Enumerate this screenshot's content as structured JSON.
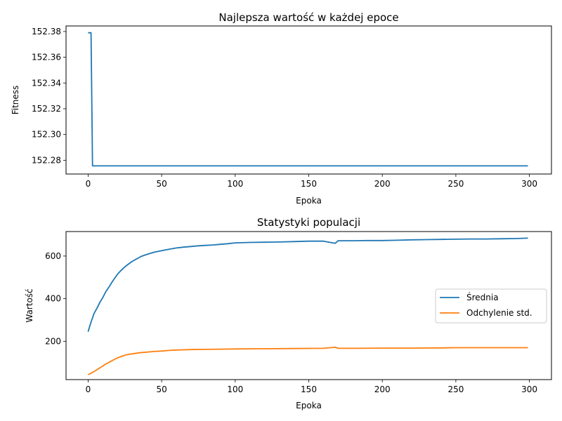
{
  "chart_data": [
    {
      "type": "line",
      "title": "Najlepsza wartość w każdej epoce",
      "xlabel": "Epoka",
      "ylabel": "Fitness",
      "xlim": [
        -15,
        315
      ],
      "ylim": [
        152.2693,
        152.3843
      ],
      "xticks": [
        0,
        50,
        100,
        150,
        200,
        250,
        300
      ],
      "xtick_labels": [
        "0",
        "50",
        "100",
        "150",
        "200",
        "250",
        "300"
      ],
      "yticks": [
        152.28,
        152.3,
        152.32,
        152.34,
        152.36,
        152.38
      ],
      "ytick_labels": [
        "152.28",
        "152.30",
        "152.32",
        "152.34",
        "152.36",
        "152.38"
      ],
      "legend": null,
      "grid": false,
      "series": [
        {
          "color": "#1f77b4",
          "x": [
            0,
            1,
            2,
            3,
            299
          ],
          "y": [
            152.379,
            152.379,
            152.379,
            152.2756,
            152.2756
          ]
        }
      ]
    },
    {
      "type": "line",
      "title": "Statystyki populacji",
      "xlabel": "Epoka",
      "ylabel": "Wartość",
      "xlim": [
        -15,
        315
      ],
      "ylim": [
        20,
        715
      ],
      "xticks": [
        0,
        50,
        100,
        150,
        200,
        250,
        300
      ],
      "xtick_labels": [
        "0",
        "50",
        "100",
        "150",
        "200",
        "250",
        "300"
      ],
      "yticks": [
        200,
        400,
        600
      ],
      "ytick_labels": [
        "200",
        "400",
        "600"
      ],
      "legend": "center-right",
      "grid": false,
      "series": [
        {
          "name": "Średnia",
          "color": "#1f77b4",
          "x": [
            0,
            2,
            4,
            6,
            8,
            10,
            12,
            14,
            16,
            18,
            20,
            22,
            24,
            26,
            28,
            30,
            32,
            34,
            36,
            38,
            40,
            45,
            50,
            55,
            60,
            65,
            70,
            75,
            80,
            85,
            90,
            95,
            100,
            110,
            120,
            130,
            140,
            150,
            160,
            168,
            170,
            180,
            190,
            200,
            210,
            220,
            230,
            240,
            250,
            260,
            270,
            280,
            290,
            299
          ],
          "y": [
            245,
            290,
            330,
            355,
            383,
            405,
            432,
            452,
            475,
            495,
            515,
            530,
            543,
            555,
            565,
            575,
            583,
            590,
            598,
            603,
            608,
            618,
            625,
            632,
            638,
            642,
            645,
            648,
            650,
            652,
            655,
            658,
            662,
            664,
            665,
            666,
            668,
            670,
            670,
            660,
            672,
            672,
            673,
            673,
            674,
            676,
            677,
            678,
            679,
            680,
            680,
            681,
            682,
            684
          ]
        },
        {
          "name": "Odchylenie std.",
          "color": "#ff7f0e",
          "x": [
            0,
            2,
            4,
            6,
            8,
            10,
            12,
            14,
            16,
            18,
            20,
            22,
            24,
            26,
            28,
            30,
            35,
            40,
            45,
            50,
            55,
            60,
            70,
            80,
            90,
            100,
            120,
            140,
            160,
            168,
            170,
            180,
            200,
            220,
            240,
            250,
            260,
            280,
            299
          ],
          "y": [
            43,
            50,
            58,
            66,
            75,
            84,
            93,
            100,
            108,
            115,
            122,
            127,
            132,
            136,
            139,
            141,
            146,
            149,
            152,
            154,
            157,
            159,
            161,
            162,
            163,
            164,
            165,
            166,
            167,
            172,
            167,
            167,
            168,
            168,
            169,
            170,
            170,
            170,
            170
          ]
        }
      ]
    }
  ]
}
